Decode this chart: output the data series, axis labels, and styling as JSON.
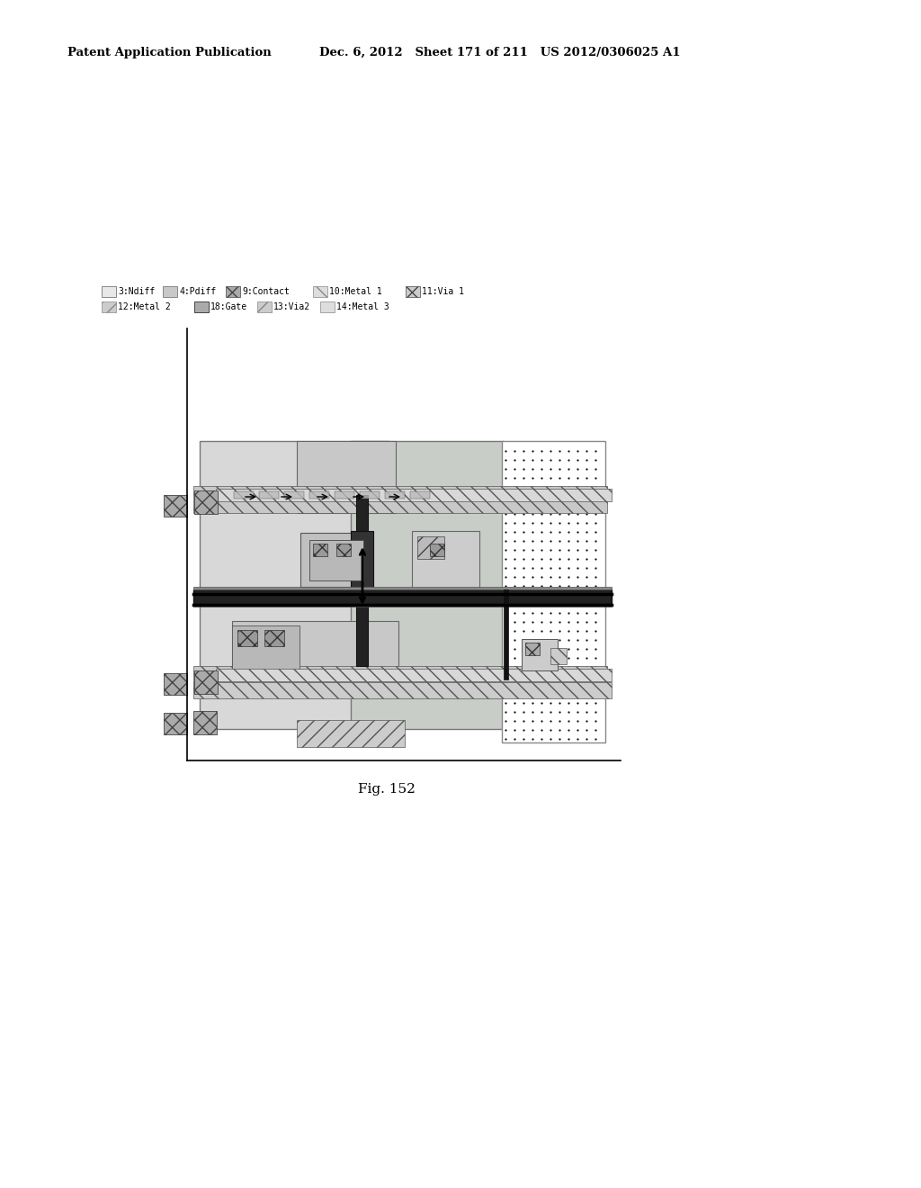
{
  "header_left": "Patent Application Publication",
  "header_mid": "Dec. 6, 2012   Sheet 171 of 211   US 2012/0306025 A1",
  "fig_label": "Fig. 152",
  "background_color": "#ffffff"
}
